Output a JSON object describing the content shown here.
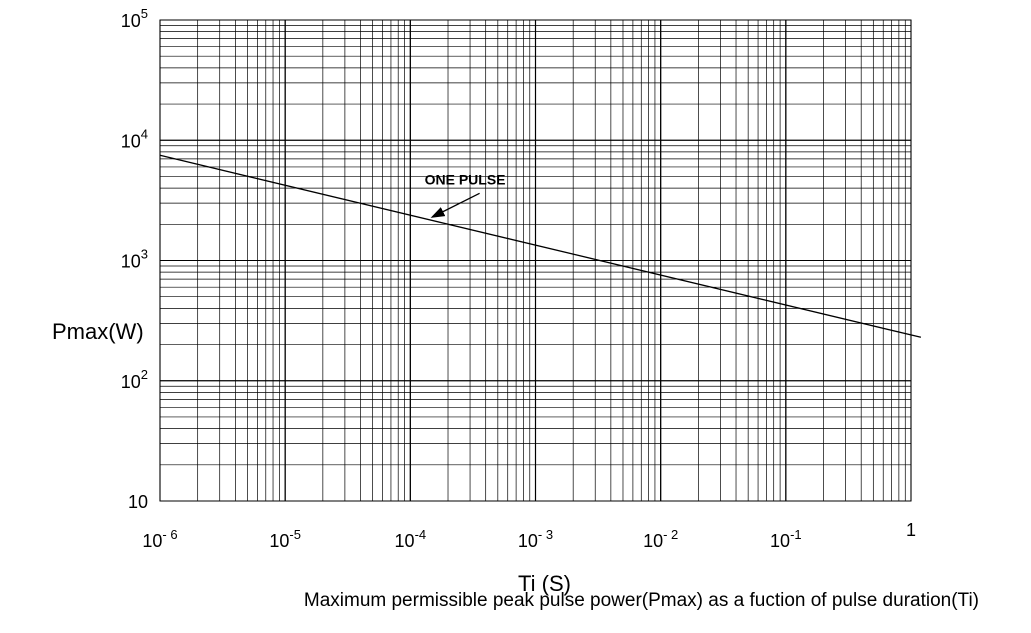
{
  "caption": "Maximum permissible peak pulse power(Pmax) as a fuction of pulse duration(Ti)",
  "chart_data": {
    "type": "line",
    "title": "",
    "xlabel": "Ti (S)",
    "ylabel": "Pmax(W)",
    "x_scale": "log",
    "y_scale": "log",
    "xlim": [
      1e-06,
      1
    ],
    "ylim": [
      10,
      100000
    ],
    "grid": true,
    "x_ticks": [
      {
        "value": 1e-06,
        "base": "10",
        "exp": "- 6"
      },
      {
        "value": 1e-05,
        "base": "10",
        "exp": "-5"
      },
      {
        "value": 0.0001,
        "base": "10",
        "exp": "-4"
      },
      {
        "value": 0.001,
        "base": "10",
        "exp": "- 3"
      },
      {
        "value": 0.01,
        "base": "10",
        "exp": "- 2"
      },
      {
        "value": 0.1,
        "base": "10",
        "exp": "-1"
      },
      {
        "value": 1,
        "base": "1",
        "exp": ""
      }
    ],
    "y_ticks": [
      {
        "value": 10,
        "base": "10",
        "exp": ""
      },
      {
        "value": 100,
        "base": "10",
        "exp": "2"
      },
      {
        "value": 1000,
        "base": "10",
        "exp": "3"
      },
      {
        "value": 10000,
        "base": "10",
        "exp": "4"
      },
      {
        "value": 100000,
        "base": "10",
        "exp": "5"
      }
    ],
    "series": [
      {
        "name": "ONE PULSE",
        "x": [
          1e-06,
          1.2
        ],
        "y": [
          7500,
          230
        ]
      }
    ],
    "annotations": [
      {
        "text": "ONE PULSE",
        "x": 0.00013,
        "y": 4300,
        "arrow_to": {
          "x": 0.00015,
          "y": 2300
        }
      }
    ]
  }
}
